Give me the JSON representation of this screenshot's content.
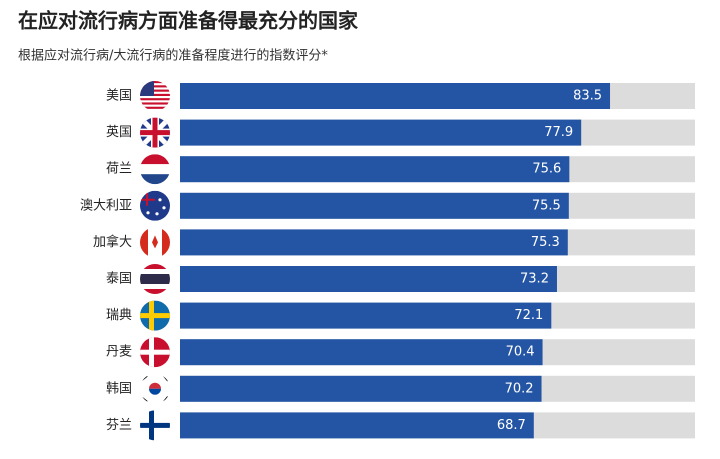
{
  "chart_data": {
    "type": "barh",
    "title": "在应对流行病方面准备得最充分的国家",
    "subtitle": "根据应对流行病/大流行病的准备程度进行的指数评分*",
    "categories": [
      "美国",
      "英国",
      "荷兰",
      "澳大利亚",
      "加拿大",
      "泰国",
      "瑞典",
      "丹麦",
      "韩国",
      "芬兰"
    ],
    "values": [
      83.5,
      77.9,
      75.6,
      75.5,
      75.3,
      73.2,
      72.1,
      70.4,
      70.2,
      68.7
    ],
    "color": "#2455a4",
    "xlim": [
      0,
      100
    ]
  }
}
